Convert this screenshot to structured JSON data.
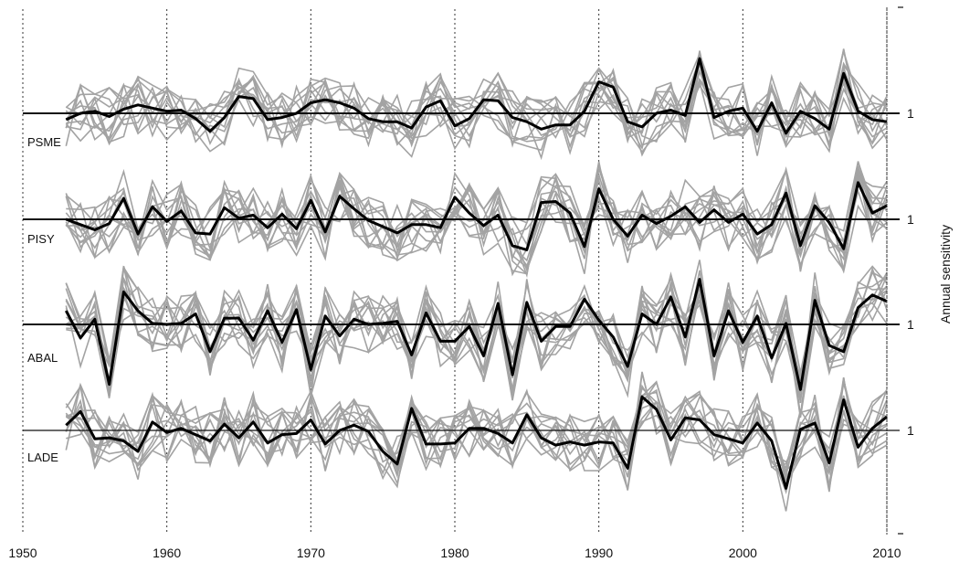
{
  "chart_data": {
    "type": "line",
    "title": "",
    "xlabel": "",
    "ylabel": "Annual sensitivity",
    "xlim": [
      1950,
      2010
    ],
    "x_ticks": [
      1950,
      1960,
      1970,
      1980,
      1990,
      2000,
      2010
    ],
    "x_tick_labels": [
      "1950",
      "1960",
      "1970",
      "1980",
      "1990",
      "2000",
      "2010"
    ],
    "vertical_gridlines": "dotted at each decade",
    "reference_value": 1,
    "reference_label": "1",
    "years": [
      1953,
      1954,
      1955,
      1956,
      1957,
      1958,
      1959,
      1960,
      1961,
      1962,
      1963,
      1964,
      1965,
      1966,
      1967,
      1968,
      1969,
      1970,
      1971,
      1972,
      1973,
      1974,
      1975,
      1976,
      1977,
      1978,
      1979,
      1980,
      1981,
      1982,
      1983,
      1984,
      1985,
      1986,
      1987,
      1988,
      1989,
      1990,
      1991,
      1992,
      1993,
      1994,
      1995,
      1996,
      1997,
      1998,
      1999,
      2000,
      2001,
      2002,
      2003,
      2004,
      2005,
      2006,
      2007,
      2008,
      2009,
      2010
    ],
    "series": [
      {
        "name": "PSME",
        "role": "mean",
        "values": [
          0.94,
          1.0,
          1.02,
          0.97,
          1.04,
          1.08,
          1.05,
          1.02,
          1.03,
          0.95,
          0.83,
          0.96,
          1.16,
          1.14,
          0.94,
          0.96,
          1.0,
          1.1,
          1.13,
          1.1,
          1.05,
          0.95,
          0.92,
          0.92,
          0.86,
          1.06,
          1.12,
          0.88,
          0.95,
          1.13,
          1.12,
          0.96,
          0.92,
          0.85,
          0.89,
          0.89,
          1.02,
          1.3,
          1.25,
          0.92,
          0.87,
          1.0,
          1.03,
          0.98,
          1.52,
          0.96,
          1.02,
          1.05,
          0.83,
          1.1,
          0.81,
          1.02,
          0.95,
          0.85,
          1.38,
          1.02,
          0.94,
          0.92
        ]
      },
      {
        "name": "PISY",
        "role": "mean",
        "values": [
          1.0,
          0.95,
          0.9,
          0.96,
          1.2,
          0.86,
          1.12,
          0.98,
          1.08,
          0.87,
          0.86,
          1.11,
          1.01,
          1.04,
          0.92,
          1.05,
          0.91,
          1.18,
          0.88,
          1.22,
          1.1,
          0.99,
          0.93,
          0.87,
          0.95,
          0.95,
          0.92,
          1.21,
          1.06,
          0.94,
          1.04,
          0.75,
          0.71,
          1.16,
          1.17,
          1.06,
          0.74,
          1.29,
          1.0,
          0.84,
          1.04,
          0.96,
          1.03,
          1.12,
          0.97,
          1.09,
          0.97,
          1.05,
          0.86,
          0.95,
          1.25,
          0.75,
          1.13,
          0.97,
          0.72,
          1.35,
          1.06,
          1.13
        ]
      },
      {
        "name": "ABAL",
        "role": "mean",
        "values": [
          1.13,
          0.87,
          1.05,
          0.43,
          1.31,
          1.13,
          1.01,
          1.0,
          1.01,
          1.1,
          0.74,
          1.06,
          1.06,
          0.85,
          1.13,
          0.83,
          1.14,
          0.57,
          1.08,
          0.89,
          1.05,
          1.0,
          1.01,
          1.03,
          0.71,
          1.11,
          0.84,
          0.84,
          0.98,
          0.7,
          1.2,
          0.52,
          1.21,
          0.84,
          0.98,
          0.98,
          1.24,
          1.04,
          0.88,
          0.6,
          1.1,
          1.0,
          1.26,
          0.88,
          1.43,
          0.7,
          1.13,
          0.83,
          1.08,
          0.68,
          1.01,
          0.38,
          1.23,
          0.8,
          0.74,
          1.16,
          1.28,
          1.22
        ]
      },
      {
        "name": "LADE",
        "role": "mean",
        "values": [
          1.05,
          1.18,
          0.92,
          0.93,
          0.9,
          0.8,
          1.08,
          0.98,
          1.02,
          0.96,
          0.9,
          1.06,
          0.93,
          1.08,
          0.88,
          0.96,
          0.97,
          1.1,
          0.87,
          1.0,
          1.05,
          0.99,
          0.8,
          0.68,
          1.21,
          0.87,
          0.87,
          0.88,
          1.02,
          1.02,
          0.97,
          0.88,
          1.15,
          0.93,
          0.86,
          0.89,
          0.86,
          0.89,
          0.88,
          0.64,
          1.32,
          1.2,
          0.91,
          1.12,
          1.1,
          0.96,
          0.92,
          0.88,
          1.07,
          0.9,
          0.45,
          1.01,
          1.07,
          0.69,
          1.29,
          0.84,
          1.02,
          1.13
        ]
      }
    ]
  }
}
